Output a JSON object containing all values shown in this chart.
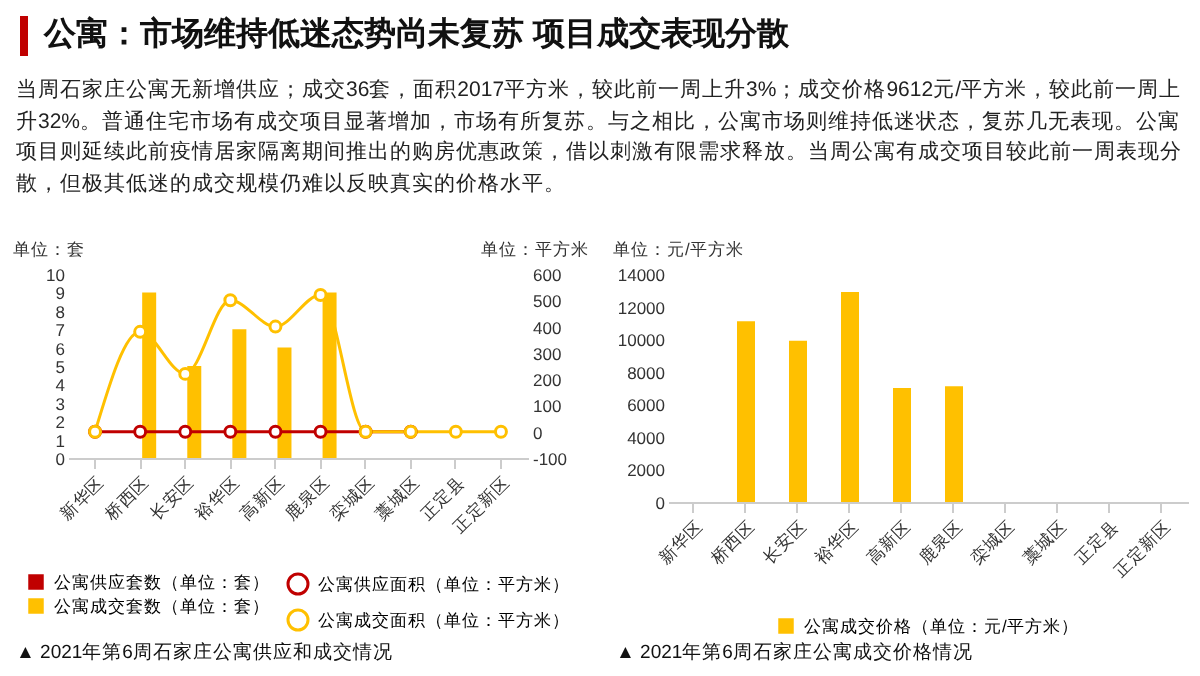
{
  "chart_data": [
    {
      "type": "other",
      "title": "公寓：市场维持低迷态势尚未复苏 项目成交表现分散",
      "annotations": [
        "当周石家庄公寓无新增供应；成交36套，面积2017平方米，较此前一周上升3%；成交价格9612元/平方米，较此前一周上升32%。普通住宅市场有成交项目显著增加，市场有所复苏。与之相比，公寓市场则维持低迷状态，复苏几无表现。公寓项目则延续此前疫情居家隔离期间推出的购房优惠政策，借以刺激有限需求释放。当周公寓有成交项目较此前一周表现分散，但极其低迷的成交规模仍难以反映真实的价格水平。"
      ]
    },
    {
      "type": "bar",
      "ylabel": "单位：套",
      "y2label": "单位：平方米",
      "categories": [
        "新华区",
        "桥西区",
        "长安区",
        "裕华区",
        "高新区",
        "鹿泉区",
        "栾城区",
        "藁城区",
        "正定县",
        "正定新区"
      ],
      "series": [
        {
          "name": "公寓供应套数（单位：套）",
          "color": "#c00000",
          "values": [
            0,
            0,
            0,
            0,
            0,
            0,
            0,
            0,
            0,
            0
          ]
        },
        {
          "name": "公寓成交套数（单位：套）",
          "color": "#ffc000",
          "values": [
            0,
            9,
            5,
            7,
            6,
            9,
            0,
            0,
            0,
            0
          ]
        },
        {
          "name": "公寓供应面积（单位：平方米）",
          "type": "line",
          "axis": "y2",
          "color": "#c00000",
          "values": [
            0,
            0,
            0,
            0,
            0,
            0,
            0,
            0,
            null,
            null
          ]
        },
        {
          "name": "公寓成交面积（单位：平方米）",
          "type": "line",
          "axis": "y2",
          "color": "#ffc000",
          "values": [
            0,
            380,
            220,
            500,
            400,
            520,
            0,
            0,
            0,
            0
          ]
        }
      ],
      "ylim": [
        0,
        10
      ],
      "yticks": [
        0,
        1,
        2,
        3,
        4,
        5,
        6,
        7,
        8,
        9,
        10
      ],
      "y2lim": [
        -100,
        600
      ],
      "y2ticks": [
        -100,
        0,
        100,
        200,
        300,
        400,
        500,
        600
      ],
      "legend": "bottom",
      "marker": "circle",
      "line_style": "solid",
      "annotations": [
        "▲ 2021年第6周石家庄公寓供应和成交情况"
      ]
    },
    {
      "type": "bar",
      "ylabel": "单位：元/平方米",
      "categories": [
        "新华区",
        "桥西区",
        "长安区",
        "裕华区",
        "高新区",
        "鹿泉区",
        "栾城区",
        "藁城区",
        "正定县",
        "正定新区"
      ],
      "series": [
        {
          "name": "公寓成交价格（单位：元/平方米）",
          "color": "#ffc000",
          "values": [
            null,
            11100,
            9900,
            12900,
            7000,
            7100,
            null,
            null,
            null,
            null
          ]
        }
      ],
      "ylim": [
        0,
        14000
      ],
      "yticks": [
        0,
        2000,
        4000,
        6000,
        8000,
        10000,
        12000,
        14000
      ],
      "legend": "bottom",
      "annotations": [
        "▲ 2021年第6周石家庄公寓成交价格情况"
      ]
    }
  ]
}
